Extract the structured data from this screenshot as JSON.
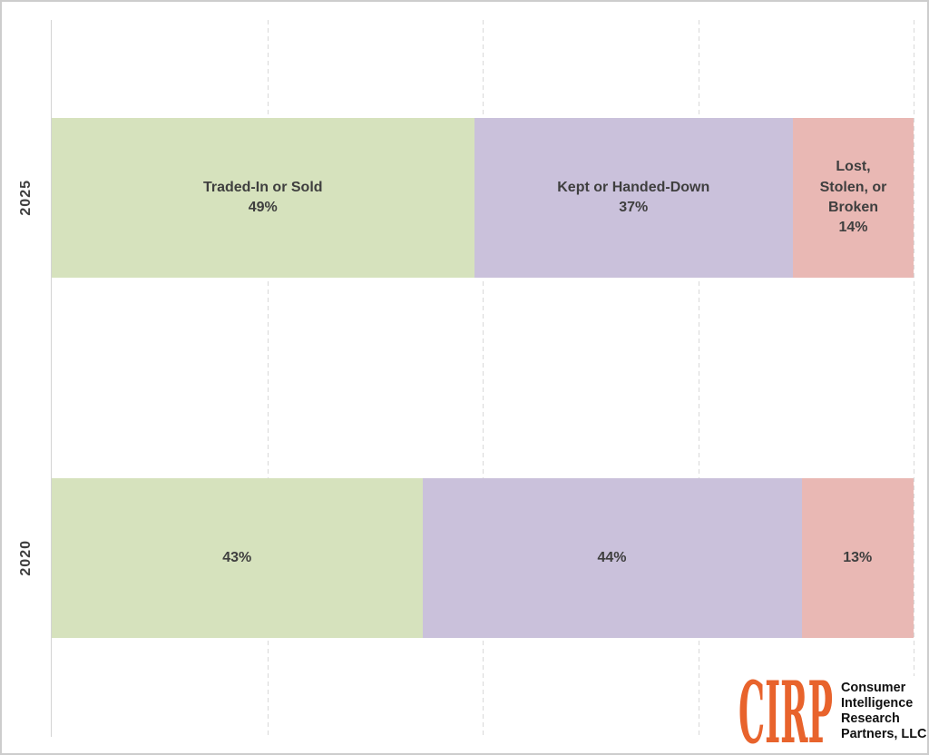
{
  "chart_data": {
    "type": "bar",
    "orientation": "horizontal",
    "stacked": true,
    "title": "",
    "categories": [
      "2025",
      "2020"
    ],
    "series": [
      {
        "name": "Traded-In or Sold",
        "color": "#D6E2BD",
        "values": [
          49,
          43
        ]
      },
      {
        "name": "Kept or Handed-Down",
        "color": "#CAC1DB",
        "values": [
          37,
          44
        ]
      },
      {
        "name": "Lost, Stolen, or Broken",
        "color": "#E9B8B4",
        "values": [
          14,
          13
        ]
      }
    ],
    "segment_label_lines": [
      [
        [
          "Traded-In or Sold",
          "49%"
        ],
        [
          "Kept or Handed-Down",
          "37%"
        ],
        [
          "Lost,",
          "Stolen, or",
          "Broken",
          "14%"
        ]
      ],
      [
        [
          "43%"
        ],
        [
          "44%"
        ],
        [
          "13%"
        ]
      ]
    ],
    "value_format": "percent",
    "xlim": [
      0,
      100
    ],
    "gridlines_percent": [
      25,
      50,
      75,
      100
    ],
    "grid_style": "vertical-dashed",
    "legend": "none"
  },
  "styles": {
    "label_text_color": "#3F3F3F",
    "gridline_color": "#D9D9D9",
    "axis_line_color": "#D4D4D4",
    "background_color": "#FFFFFF",
    "border_color": "#CDCDCD"
  },
  "logo": {
    "abbr": "CIRP",
    "abbr_color": "#E8632C",
    "name_lines": [
      "Consumer",
      "Intelligence",
      "Research",
      "Partners, LLC"
    ],
    "name_color": "#111111"
  }
}
